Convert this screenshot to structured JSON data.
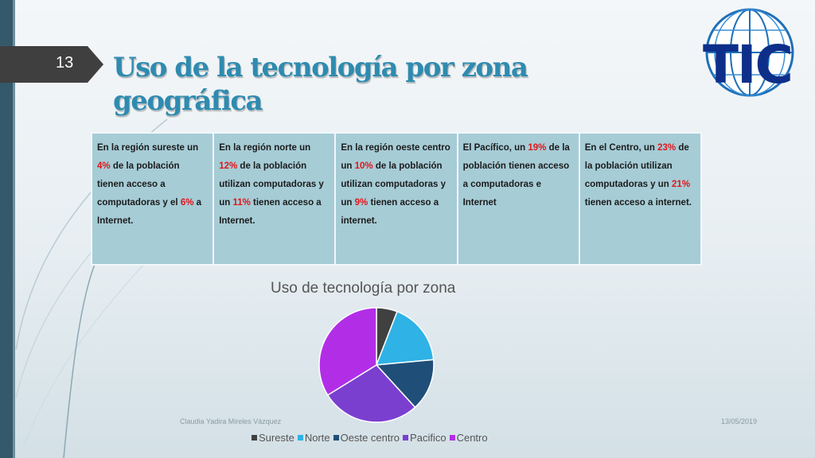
{
  "slide": {
    "number": "13",
    "title": "Uso de la tecnología por zona geográfica",
    "logo_text": "TIC"
  },
  "table": {
    "cells": [
      [
        {
          "t": "En la región sureste un "
        },
        {
          "t": "4%",
          "red": true
        },
        {
          "t": " de la población tienen acceso a computadoras y el "
        },
        {
          "t": "6%",
          "red": true
        },
        {
          "t": " a Internet."
        }
      ],
      [
        {
          "t": "En la región norte un "
        },
        {
          "t": "12%",
          "red": true
        },
        {
          "t": " de la población utilizan computadoras y un "
        },
        {
          "t": "11%",
          "red": true
        },
        {
          "t": " tienen acceso a Internet."
        }
      ],
      [
        {
          "t": "En la región oeste centro un  "
        },
        {
          "t": "10%",
          "red": true
        },
        {
          "t": " de la población utilizan computadoras y un "
        },
        {
          "t": "9%",
          "red": true
        },
        {
          "t": " tienen acceso a internet."
        }
      ],
      [
        {
          "t": "El Pacífico, un "
        },
        {
          "t": "19%",
          "red": true
        },
        {
          "t": " de la población tienen acceso a computadoras e Internet"
        }
      ],
      [
        {
          "t": "En el Centro, un "
        },
        {
          "t": "23%",
          "red": true
        },
        {
          "t": " de la población utilizan computadoras y un "
        },
        {
          "t": "21%",
          "red": true
        },
        {
          "t": " tienen acceso a internet."
        }
      ]
    ]
  },
  "chart_data": {
    "type": "pie",
    "title": "Uso de tecnología por zona",
    "categories": [
      "Sureste",
      "Norte",
      "Oeste centro",
      "Pacifico",
      "Centro"
    ],
    "values": [
      4,
      12,
      10,
      19,
      23
    ],
    "colors": [
      "#404040",
      "#2fb2e6",
      "#1f4e79",
      "#7b3fd0",
      "#b22ee6"
    ],
    "legend_position": "bottom"
  },
  "footer": {
    "author": "Claudia Yadira Mireles Vázquez",
    "date": "13/05/2019"
  }
}
